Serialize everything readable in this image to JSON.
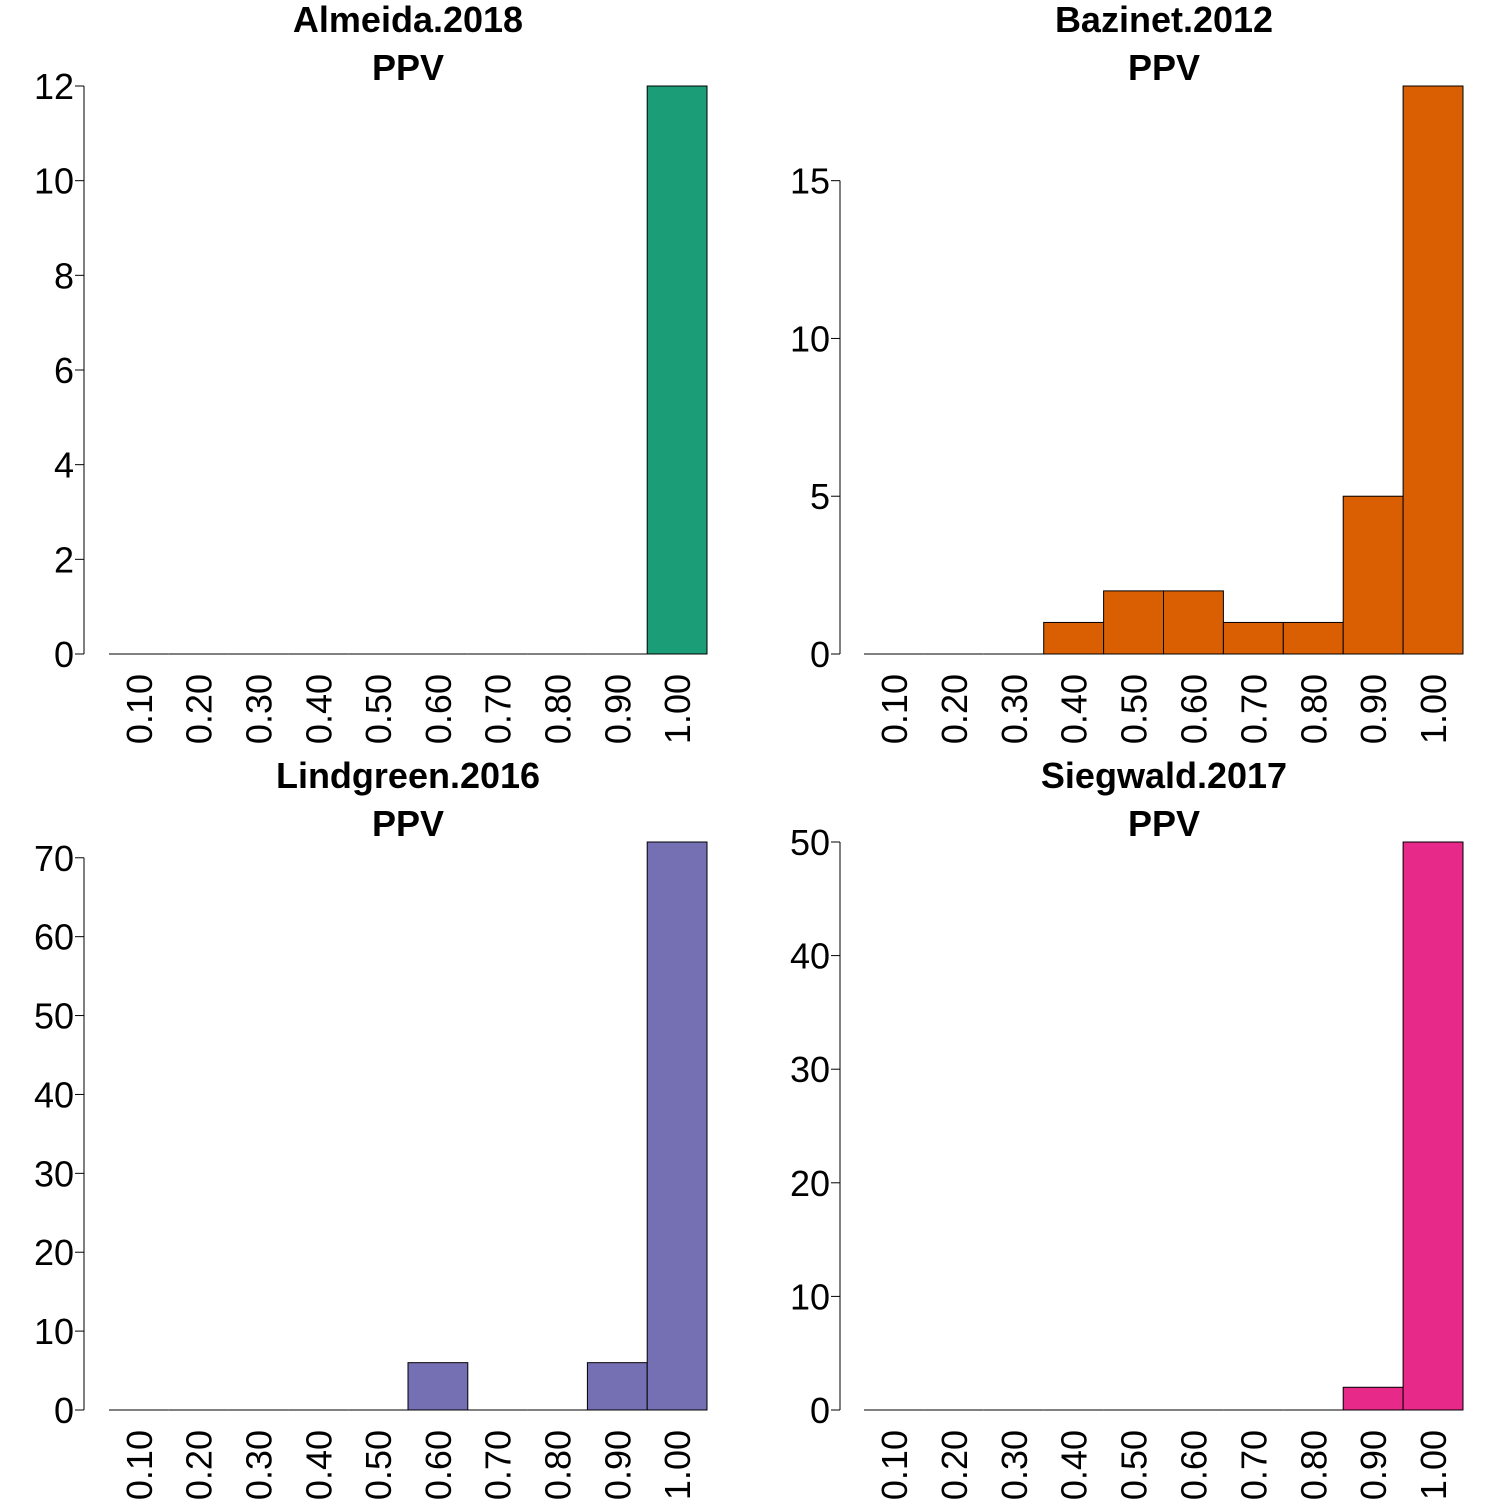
{
  "chart_data": [
    {
      "type": "bar",
      "title": "Almeida.2018",
      "subtitle": "PPV",
      "color": "#1b9e77",
      "categories": [
        "0.10",
        "0.20",
        "0.30",
        "0.40",
        "0.50",
        "0.60",
        "0.70",
        "0.80",
        "0.90",
        "1.00"
      ],
      "values": [
        0,
        0,
        0,
        0,
        0,
        0,
        0,
        0,
        0,
        12
      ],
      "ylim": [
        0,
        12
      ],
      "yticks": [
        0,
        2,
        4,
        6,
        8,
        10,
        12
      ],
      "xlabel": "",
      "ylabel": "",
      "grid": false
    },
    {
      "type": "bar",
      "title": "Bazinet.2012",
      "subtitle": "PPV",
      "color": "#d95f02",
      "categories": [
        "0.10",
        "0.20",
        "0.30",
        "0.40",
        "0.50",
        "0.60",
        "0.70",
        "0.80",
        "0.90",
        "1.00"
      ],
      "values": [
        0,
        0,
        0,
        1,
        2,
        2,
        1,
        1,
        5,
        18
      ],
      "ylim": [
        0,
        18
      ],
      "yticks": [
        0,
        5,
        10,
        15
      ],
      "xlabel": "",
      "ylabel": "",
      "grid": false
    },
    {
      "type": "bar",
      "title": "Lindgreen.2016",
      "subtitle": "PPV",
      "color": "#7570b3",
      "categories": [
        "0.10",
        "0.20",
        "0.30",
        "0.40",
        "0.50",
        "0.60",
        "0.70",
        "0.80",
        "0.90",
        "1.00"
      ],
      "values": [
        0,
        0,
        0,
        0,
        0,
        6,
        0,
        0,
        6,
        72
      ],
      "ylim": [
        0,
        72
      ],
      "yticks": [
        0,
        10,
        20,
        30,
        40,
        50,
        60,
        70
      ],
      "xlabel": "",
      "ylabel": "",
      "grid": false
    },
    {
      "type": "bar",
      "title": "Siegwald.2017",
      "subtitle": "PPV",
      "color": "#e7298a",
      "categories": [
        "0.10",
        "0.20",
        "0.30",
        "0.40",
        "0.50",
        "0.60",
        "0.70",
        "0.80",
        "0.90",
        "1.00"
      ],
      "values": [
        0,
        0,
        0,
        0,
        0,
        0,
        0,
        0,
        2,
        50
      ],
      "ylim": [
        0,
        50
      ],
      "yticks": [
        0,
        10,
        20,
        30,
        40,
        50
      ],
      "xlabel": "",
      "ylabel": "",
      "grid": false
    }
  ]
}
